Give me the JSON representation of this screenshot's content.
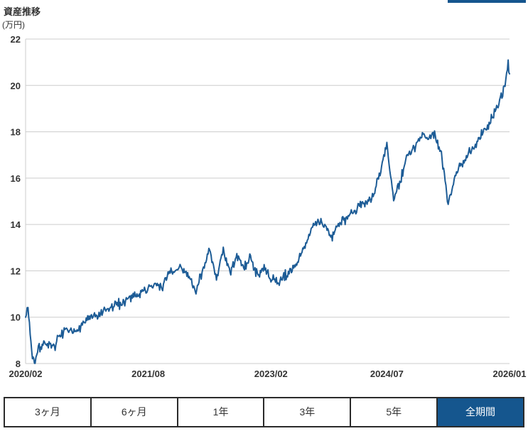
{
  "page": {
    "title": "資産推移",
    "unit_label": "(万円)"
  },
  "colors": {
    "accent_blue": "#15568E",
    "line_blue": "#1D5C96",
    "grid": "#CCCCCC",
    "text": "#333333",
    "button_border": "#2B2B2B",
    "selected_button_text": "#FFFFFF"
  },
  "period_buttons": [
    {
      "id": "3m",
      "label": "3ヶ月",
      "selected": false
    },
    {
      "id": "6m",
      "label": "6ヶ月",
      "selected": false
    },
    {
      "id": "1y",
      "label": "1年",
      "selected": false
    },
    {
      "id": "3y",
      "label": "3年",
      "selected": false
    },
    {
      "id": "5y",
      "label": "5年",
      "selected": false
    },
    {
      "id": "all",
      "label": "全期間",
      "selected": true
    }
  ],
  "chart_data": {
    "type": "line",
    "title": "資産推移",
    "ylabel": "(万円)",
    "xlabel": "",
    "ylim": [
      8,
      22
    ],
    "y_ticks": [
      8,
      10,
      12,
      14,
      16,
      18,
      20,
      22
    ],
    "x_tick_labels": [
      "2020/02",
      "2021/08",
      "2023/02",
      "2024/07",
      "2026/01"
    ],
    "x_tick_month_index": [
      0,
      18,
      36,
      53,
      71
    ],
    "grid": true,
    "legend": false,
    "series": [
      {
        "months": [
          "2020/02",
          "2020/03",
          "2020/04",
          "2020/05",
          "2020/06",
          "2020/07",
          "2020/08",
          "2020/09",
          "2020/10",
          "2020/11",
          "2020/12",
          "2021/01",
          "2021/02",
          "2021/03",
          "2021/04",
          "2021/05",
          "2021/06",
          "2021/07",
          "2021/08",
          "2021/09",
          "2021/10",
          "2021/11",
          "2021/12",
          "2022/01",
          "2022/02",
          "2022/03",
          "2022/04",
          "2022/05",
          "2022/06",
          "2022/07",
          "2022/08",
          "2022/09",
          "2022/10",
          "2022/11",
          "2022/12",
          "2023/01",
          "2023/02",
          "2023/03",
          "2023/04",
          "2023/05",
          "2023/06",
          "2023/07",
          "2023/08",
          "2023/09",
          "2023/10",
          "2023/11",
          "2023/12",
          "2024/01",
          "2024/02",
          "2024/03",
          "2024/04",
          "2024/05",
          "2024/06",
          "2024/07",
          "2024/08",
          "2024/09",
          "2024/10",
          "2024/11",
          "2024/12",
          "2025/01",
          "2025/02",
          "2025/03",
          "2025/04",
          "2025/05",
          "2025/06",
          "2025/07",
          "2025/08",
          "2025/09",
          "2025/10",
          "2025/11",
          "2025/12",
          "2026/01"
        ],
        "values": [
          10.0,
          8.2,
          8.7,
          8.9,
          8.6,
          9.2,
          9.4,
          9.3,
          9.6,
          9.9,
          10.0,
          10.1,
          10.3,
          10.5,
          10.6,
          10.8,
          11.0,
          11.1,
          11.2,
          11.4,
          11.3,
          12.0,
          11.9,
          12.2,
          11.7,
          11.1,
          12.1,
          12.8,
          11.7,
          12.8,
          11.9,
          12.7,
          12.1,
          12.6,
          11.8,
          12.1,
          11.6,
          11.5,
          11.8,
          12.0,
          12.4,
          13.2,
          13.8,
          14.1,
          13.9,
          13.4,
          14.1,
          14.2,
          14.5,
          14.8,
          15.0,
          15.2,
          16.2,
          17.5,
          15.1,
          15.9,
          17.0,
          17.3,
          17.8,
          17.8,
          17.9,
          17.0,
          15.0,
          16.1,
          16.6,
          17.1,
          17.4,
          18.0,
          18.3,
          19.0,
          19.6,
          20.6
        ]
      }
    ],
    "intra_month_extremes": [
      {
        "month": "2020/02",
        "type": "spike_high",
        "value": 10.45
      },
      {
        "month": "2020/03",
        "type": "low",
        "value": 8.05
      },
      {
        "month": "2024/08",
        "type": "low",
        "value": 15.05
      },
      {
        "month": "2025/04",
        "type": "low",
        "value": 14.9
      },
      {
        "month": "2026/01",
        "type": "peak_high",
        "value": 20.9
      },
      {
        "month": "2026/01",
        "type": "end",
        "value": 20.5
      }
    ],
    "render": {
      "subdivisions": 9,
      "jitter": 0.13,
      "seed": 7
    }
  }
}
